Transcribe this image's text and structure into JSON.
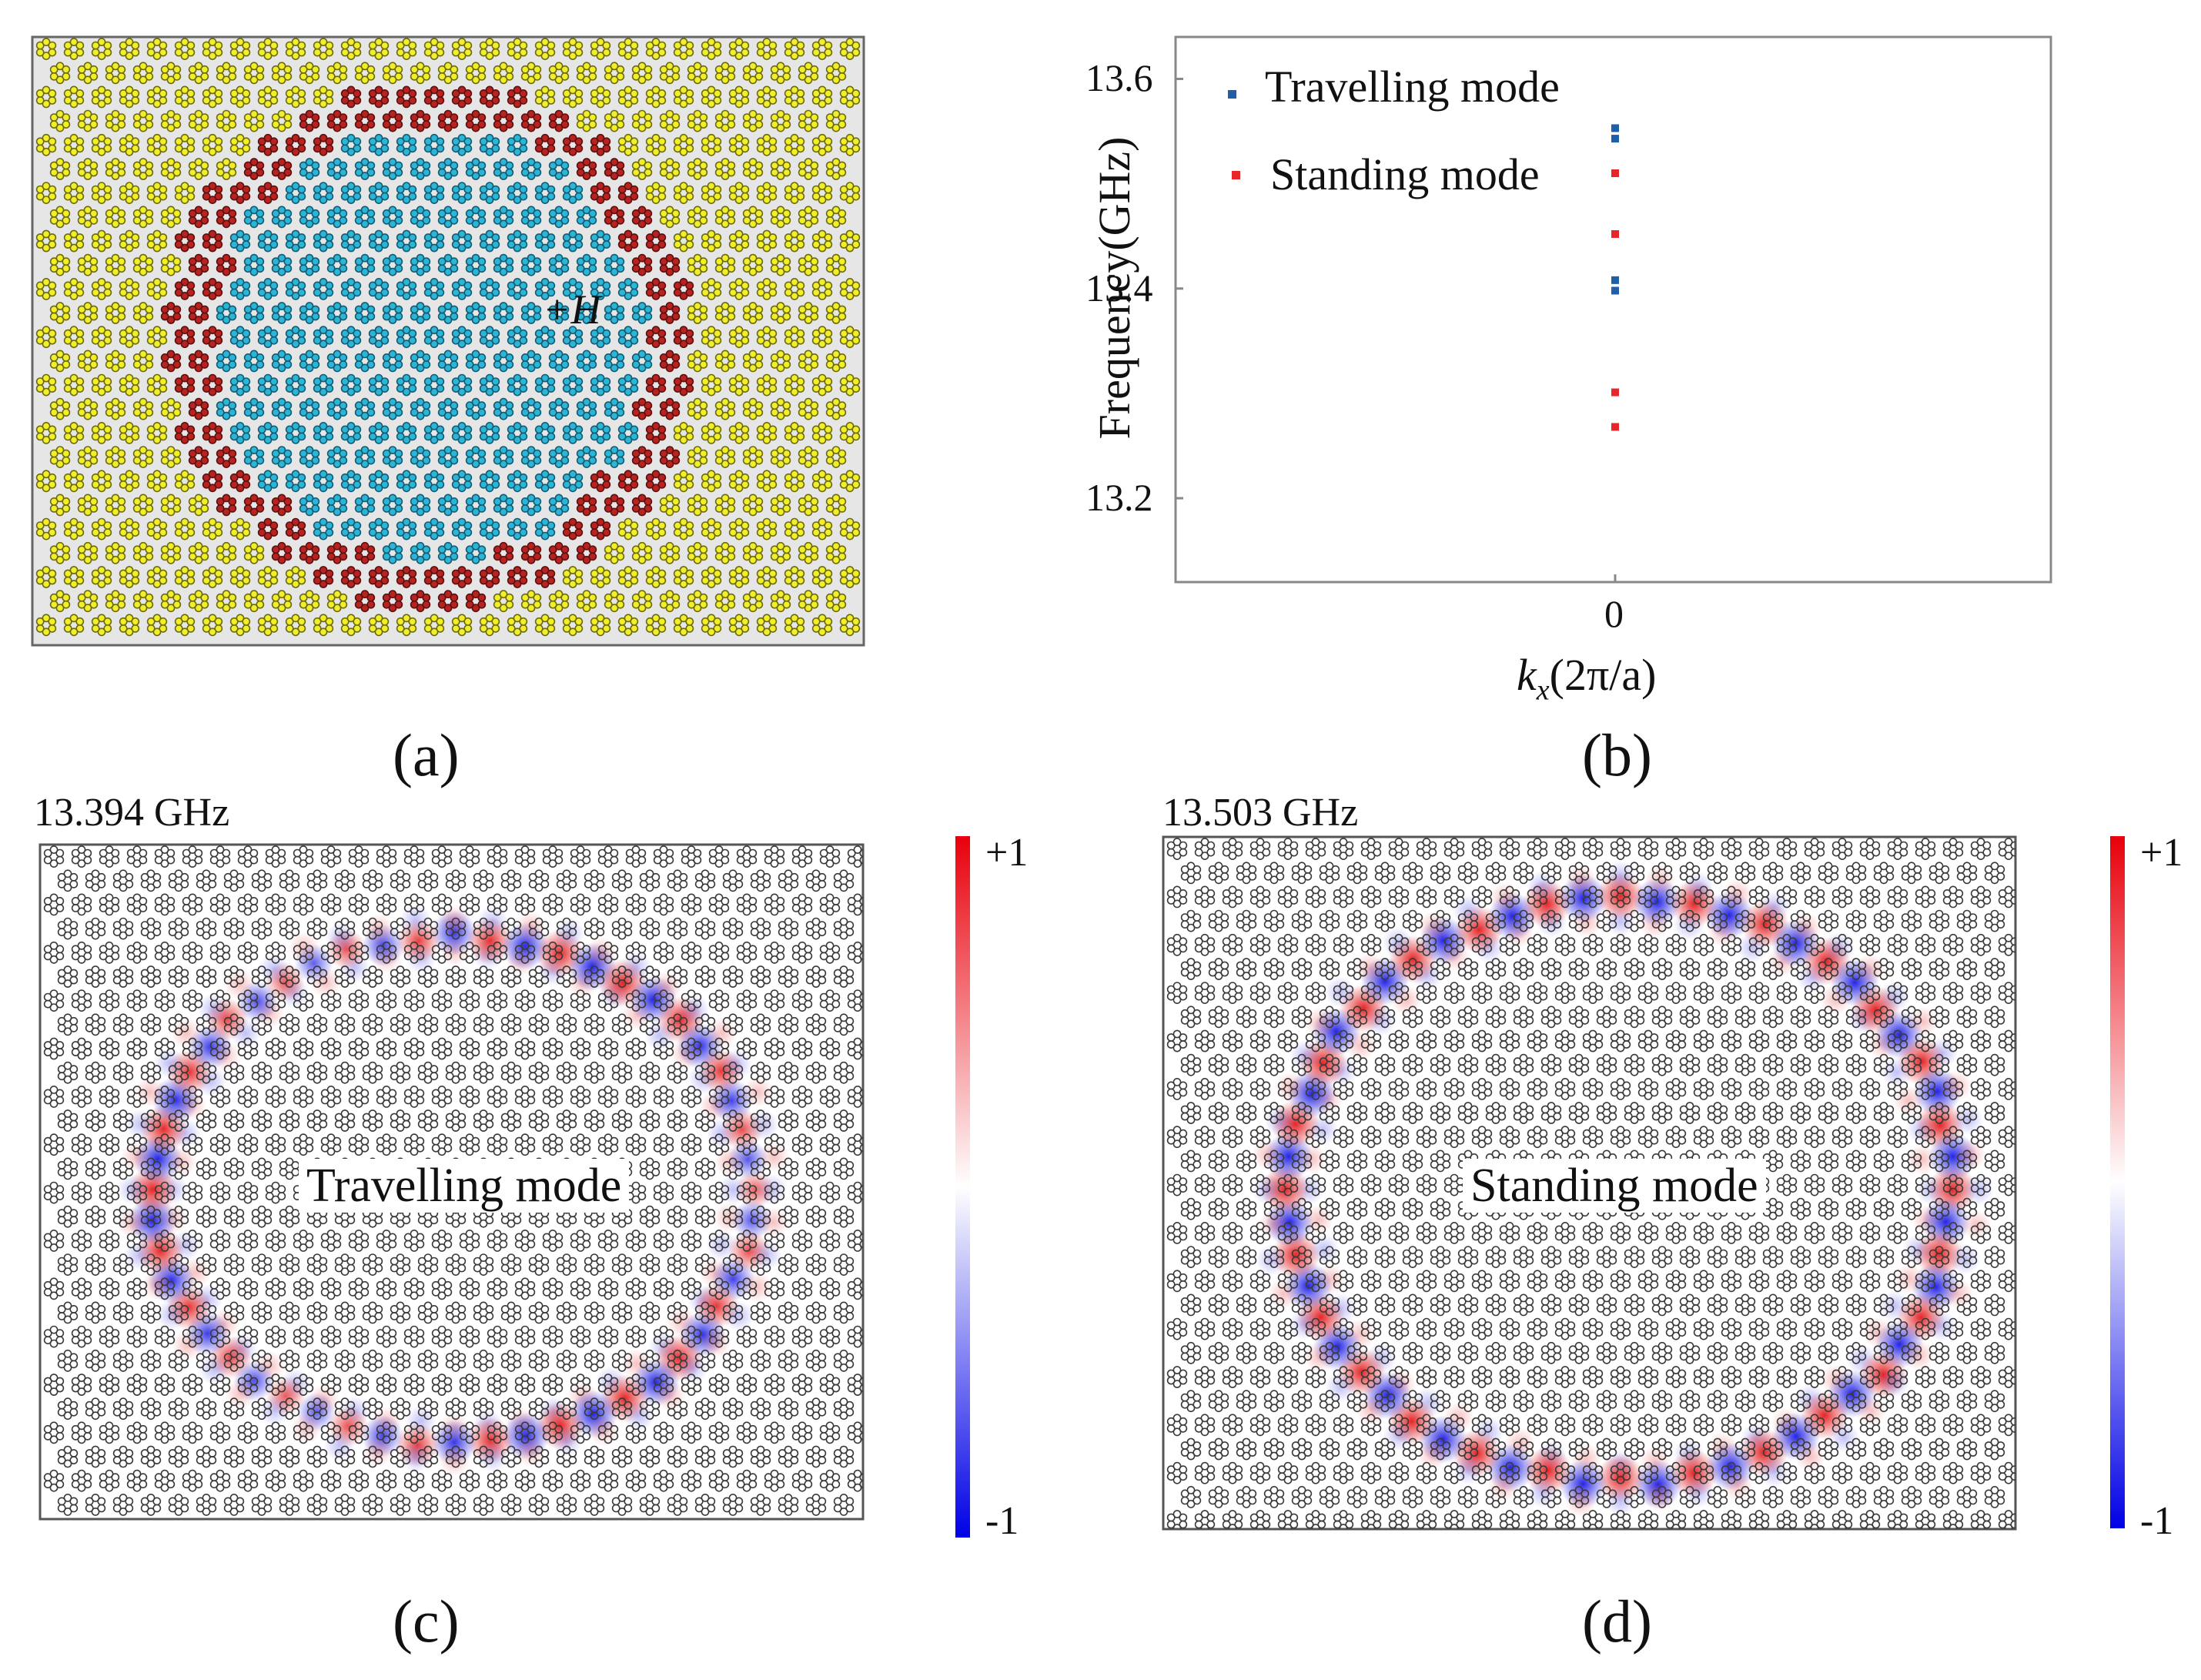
{
  "panels": {
    "a": {
      "label": "(a)",
      "marker": "+H"
    },
    "b": {
      "label": "(b)"
    },
    "c": {
      "label": "(c)",
      "frequency": "13.394 GHz",
      "mode_text": "Travelling mode",
      "colorbar": {
        "max": "+1",
        "min": "-1"
      }
    },
    "d": {
      "label": "(d)",
      "frequency": "13.503 GHz",
      "mode_text": "Standing mode",
      "colorbar": {
        "max": "+1",
        "min": "-1"
      }
    }
  },
  "colors": {
    "travelling": "#1f5fa8",
    "standing": "#e8262a",
    "yellow": "#f2ee2a",
    "cyan": "#2bb6d8",
    "darkred": "#b8231f",
    "background": "#e6e6e6"
  },
  "chart_data": {
    "type": "scatter",
    "xlabel_main": "k",
    "xlabel_sub": "x",
    "xlabel_rest": "(2π/a)",
    "ylabel": "Frequency(GHz)",
    "x_ticks": [
      "0"
    ],
    "y_ticks": [
      "13.2",
      "13.4",
      "13.6"
    ],
    "ylim": [
      13.12,
      13.64
    ],
    "series": [
      {
        "name": "Travelling mode",
        "color": "#1f5fa8",
        "x": [
          0,
          0,
          0,
          0
        ],
        "y": [
          13.553,
          13.543,
          13.408,
          13.398
        ]
      },
      {
        "name": "Standing mode",
        "color": "#e8262a",
        "x": [
          0,
          0,
          0,
          0
        ],
        "y": [
          13.51,
          13.452,
          13.301,
          13.268
        ]
      }
    ]
  }
}
